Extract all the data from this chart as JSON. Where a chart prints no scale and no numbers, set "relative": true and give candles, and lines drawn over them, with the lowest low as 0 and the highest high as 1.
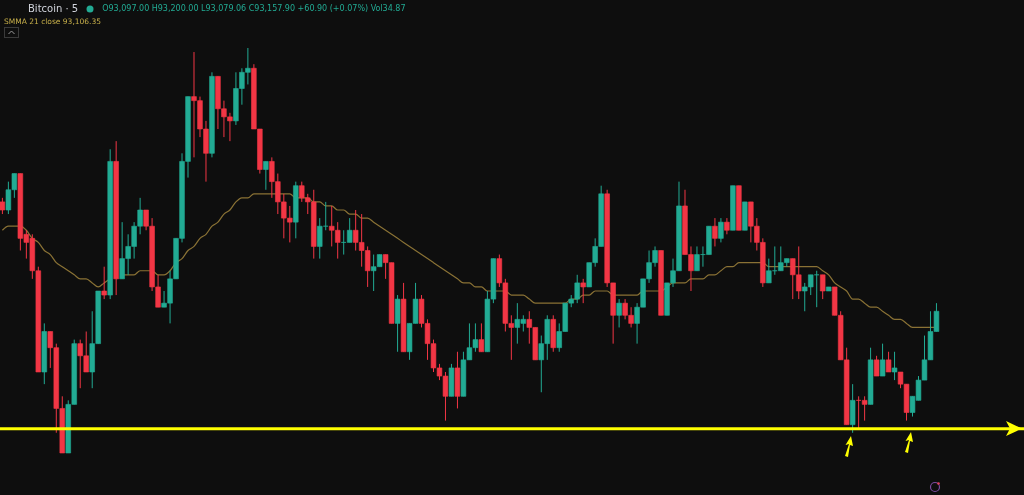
{
  "chart_data": {
    "type": "candlestick",
    "relative": true,
    "title": "Bitcoin · 5",
    "annotations": [
      "O93,097.00 H93,200.00 L93,079.06 C93,157.90 +60.90 (+0.07%) Vol34.87",
      "SMMA 21 close 93,106.35"
    ],
    "categories": [
      null,
      null,
      null,
      null,
      null,
      null,
      null,
      null,
      null,
      null,
      null,
      null,
      null,
      null,
      null,
      null,
      null,
      null,
      null,
      null,
      null,
      null,
      null,
      null,
      null,
      null,
      null,
      null,
      null,
      null,
      null,
      null,
      null,
      null,
      null,
      null,
      null,
      null,
      null,
      null,
      null,
      null,
      null,
      null,
      null,
      null,
      null,
      null,
      null,
      null,
      null,
      null,
      null,
      null,
      null,
      null,
      null,
      null,
      null,
      null,
      null,
      null,
      null,
      null,
      null,
      null,
      null,
      null,
      null,
      null,
      null,
      null,
      null,
      null,
      null,
      null,
      null,
      null,
      null,
      null,
      null,
      null,
      null,
      null,
      null,
      null,
      null,
      null,
      null,
      null,
      null,
      null,
      null,
      null,
      null,
      null,
      null,
      null,
      null,
      null,
      null,
      null,
      null,
      null,
      null,
      null,
      null,
      null,
      null,
      null,
      null,
      null,
      null,
      null,
      null,
      null,
      null,
      null,
      null,
      null,
      null,
      null,
      null,
      null,
      null,
      null,
      null,
      null,
      null,
      null,
      null,
      null,
      null,
      null,
      null,
      null,
      null,
      null,
      null,
      null,
      null,
      null,
      null,
      null,
      null,
      null,
      null,
      null,
      null,
      null,
      null,
      null,
      null,
      null,
      null,
      null,
      null
    ],
    "ohlc": [
      [
        0.62,
        0.63,
        0.59,
        0.6
      ],
      [
        0.6,
        0.67,
        0.59,
        0.65
      ],
      [
        0.65,
        0.69,
        0.63,
        0.69
      ],
      [
        0.69,
        0.69,
        0.5,
        0.53
      ],
      [
        0.54,
        0.55,
        0.48,
        0.52
      ],
      [
        0.53,
        0.54,
        0.43,
        0.45
      ],
      [
        0.45,
        0.46,
        0.2,
        0.2
      ],
      [
        0.2,
        0.32,
        0.17,
        0.3
      ],
      [
        0.3,
        0.3,
        0.21,
        0.26
      ],
      [
        0.26,
        0.27,
        0.05,
        0.11
      ],
      [
        0.11,
        0.14,
        0,
        0
      ],
      [
        0,
        0.13,
        0,
        0.12
      ],
      [
        0.12,
        0.28,
        0.12,
        0.27
      ],
      [
        0.27,
        0.28,
        0.16,
        0.24
      ],
      [
        0.24,
        0.3,
        0.2,
        0.2
      ],
      [
        0.2,
        0.35,
        0.16,
        0.27
      ],
      [
        0.27,
        0.4,
        0.27,
        0.4
      ],
      [
        0.4,
        0.46,
        0.38,
        0.39
      ],
      [
        0.39,
        0.75,
        0.38,
        0.72
      ],
      [
        0.72,
        0.77,
        0.39,
        0.43
      ],
      [
        0.43,
        0.57,
        0.43,
        0.48
      ],
      [
        0.48,
        0.54,
        0.44,
        0.51
      ],
      [
        0.51,
        0.57,
        0.48,
        0.56
      ],
      [
        0.56,
        0.63,
        0.54,
        0.6
      ],
      [
        0.6,
        0.6,
        0.55,
        0.56
      ],
      [
        0.56,
        0.58,
        0.4,
        0.41
      ],
      [
        0.41,
        0.44,
        0.36,
        0.36
      ],
      [
        0.36,
        0.4,
        0.36,
        0.37
      ],
      [
        0.37,
        0.45,
        0.32,
        0.43
      ],
      [
        0.43,
        0.53,
        0.43,
        0.53
      ],
      [
        0.53,
        0.74,
        0.52,
        0.72
      ],
      [
        0.72,
        0.88,
        0.68,
        0.88
      ],
      [
        0.88,
        0.99,
        0.73,
        0.87
      ],
      [
        0.87,
        0.88,
        0.78,
        0.8
      ],
      [
        0.8,
        0.82,
        0.67,
        0.74
      ],
      [
        0.74,
        0.94,
        0.73,
        0.93
      ],
      [
        0.93,
        0.93,
        0.8,
        0.85
      ],
      [
        0.85,
        0.87,
        0.78,
        0.83
      ],
      [
        0.83,
        0.84,
        0.77,
        0.82
      ],
      [
        0.82,
        0.94,
        0.81,
        0.9
      ],
      [
        0.9,
        0.95,
        0.86,
        0.94
      ],
      [
        0.94,
        1,
        0.91,
        0.95
      ],
      [
        0.95,
        0.96,
        0.8,
        0.8
      ],
      [
        0.8,
        0.8,
        0.69,
        0.7
      ],
      [
        0.7,
        0.72,
        0.65,
        0.72
      ],
      [
        0.72,
        0.73,
        0.63,
        0.67
      ],
      [
        0.67,
        0.69,
        0.59,
        0.62
      ],
      [
        0.62,
        0.64,
        0.53,
        0.58
      ],
      [
        0.58,
        0.61,
        0.52,
        0.57
      ],
      [
        0.57,
        0.67,
        0.53,
        0.66
      ],
      [
        0.66,
        0.67,
        0.62,
        0.63
      ],
      [
        0.63,
        0.64,
        0.59,
        0.62
      ],
      [
        0.62,
        0.65,
        0.48,
        0.51
      ],
      [
        0.51,
        0.58,
        0.48,
        0.56
      ],
      [
        0.56,
        0.62,
        0.55,
        0.56
      ],
      [
        0.56,
        0.61,
        0.51,
        0.55
      ],
      [
        0.55,
        0.57,
        0.48,
        0.52
      ],
      [
        0.52,
        0.55,
        0.49,
        0.52
      ],
      [
        0.52,
        0.58,
        0.52,
        0.55
      ],
      [
        0.55,
        0.6,
        0.5,
        0.52
      ],
      [
        0.52,
        0.59,
        0.46,
        0.5
      ],
      [
        0.5,
        0.51,
        0.41,
        0.45
      ],
      [
        0.45,
        0.49,
        0.4,
        0.46
      ],
      [
        0.46,
        0.49,
        0.46,
        0.49
      ],
      [
        0.49,
        0.49,
        0.43,
        0.47
      ],
      [
        0.47,
        0.47,
        0.32,
        0.32
      ],
      [
        0.32,
        0.39,
        0.25,
        0.38
      ],
      [
        0.38,
        0.42,
        0.25,
        0.25
      ],
      [
        0.25,
        0.32,
        0.23,
        0.32
      ],
      [
        0.32,
        0.42,
        0.32,
        0.38
      ],
      [
        0.38,
        0.39,
        0.31,
        0.32
      ],
      [
        0.32,
        0.33,
        0.23,
        0.27
      ],
      [
        0.27,
        0.28,
        0.2,
        0.21
      ],
      [
        0.21,
        0.22,
        0.18,
        0.19
      ],
      [
        0.19,
        0.2,
        0.08,
        0.14
      ],
      [
        0.14,
        0.22,
        0.14,
        0.21
      ],
      [
        0.21,
        0.25,
        0.11,
        0.14
      ],
      [
        0.14,
        0.25,
        0.14,
        0.23
      ],
      [
        0.23,
        0.32,
        0.23,
        0.26
      ],
      [
        0.26,
        0.32,
        0.25,
        0.28
      ],
      [
        0.28,
        0.32,
        0.25,
        0.25
      ],
      [
        0.25,
        0.4,
        0.25,
        0.38
      ],
      [
        0.38,
        0.48,
        0.37,
        0.48
      ],
      [
        0.48,
        0.49,
        0.41,
        0.42
      ],
      [
        0.42,
        0.43,
        0.3,
        0.32
      ],
      [
        0.32,
        0.34,
        0.23,
        0.31
      ],
      [
        0.31,
        0.37,
        0.27,
        0.33
      ],
      [
        0.32,
        0.34,
        0.3,
        0.33
      ],
      [
        0.33,
        0.35,
        0.27,
        0.31
      ],
      [
        0.31,
        0.31,
        0.23,
        0.23
      ],
      [
        0.23,
        0.29,
        0.15,
        0.27
      ],
      [
        0.27,
        0.34,
        0.23,
        0.33
      ],
      [
        0.33,
        0.34,
        0.25,
        0.26
      ],
      [
        0.26,
        0.32,
        0.25,
        0.3
      ],
      [
        0.3,
        0.37,
        0.3,
        0.37
      ],
      [
        0.37,
        0.39,
        0.36,
        0.38
      ],
      [
        0.38,
        0.44,
        0.37,
        0.42
      ],
      [
        0.42,
        0.43,
        0.37,
        0.41
      ],
      [
        0.41,
        0.47,
        0.41,
        0.47
      ],
      [
        0.47,
        0.53,
        0.46,
        0.51
      ],
      [
        0.51,
        0.66,
        0.51,
        0.64
      ],
      [
        0.64,
        0.65,
        0.41,
        0.42
      ],
      [
        0.42,
        0.42,
        0.27,
        0.34
      ],
      [
        0.34,
        0.38,
        0.31,
        0.37
      ],
      [
        0.37,
        0.38,
        0.33,
        0.34
      ],
      [
        0.34,
        0.36,
        0.31,
        0.32
      ],
      [
        0.32,
        0.37,
        0.27,
        0.36
      ],
      [
        0.36,
        0.43,
        0.36,
        0.43
      ],
      [
        0.43,
        0.5,
        0.42,
        0.47
      ],
      [
        0.47,
        0.51,
        0.46,
        0.5
      ],
      [
        0.5,
        0.5,
        0.34,
        0.34
      ],
      [
        0.34,
        0.42,
        0.34,
        0.42
      ],
      [
        0.42,
        0.48,
        0.41,
        0.45
      ],
      [
        0.45,
        0.67,
        0.45,
        0.61
      ],
      [
        0.61,
        0.65,
        0.49,
        0.49
      ],
      [
        0.49,
        0.51,
        0.4,
        0.45
      ],
      [
        0.45,
        0.51,
        0.45,
        0.49
      ],
      [
        0.49,
        0.51,
        0.46,
        0.49
      ],
      [
        0.49,
        0.56,
        0.49,
        0.56
      ],
      [
        0.56,
        0.58,
        0.51,
        0.53
      ],
      [
        0.53,
        0.58,
        0.52,
        0.57
      ],
      [
        0.57,
        0.58,
        0.54,
        0.55
      ],
      [
        0.55,
        0.66,
        0.55,
        0.66
      ],
      [
        0.66,
        0.66,
        0.55,
        0.55
      ],
      [
        0.55,
        0.62,
        0.55,
        0.62
      ],
      [
        0.62,
        0.62,
        0.52,
        0.56
      ],
      [
        0.56,
        0.58,
        0.5,
        0.52
      ],
      [
        0.52,
        0.53,
        0.41,
        0.42
      ],
      [
        0.42,
        0.48,
        0.42,
        0.45
      ],
      [
        0.45,
        0.51,
        0.44,
        0.45
      ],
      [
        0.45,
        0.51,
        0.45,
        0.47
      ],
      [
        0.47,
        0.48,
        0.46,
        0.48
      ],
      [
        0.48,
        0.48,
        0.38,
        0.44
      ],
      [
        0.44,
        0.51,
        0.38,
        0.4
      ],
      [
        0.4,
        0.42,
        0.35,
        0.41
      ],
      [
        0.41,
        0.44,
        0.39,
        0.44
      ],
      [
        0.44,
        0.45,
        0.36,
        0.44
      ],
      [
        0.44,
        0.44,
        0.38,
        0.4
      ],
      [
        0.4,
        0.41,
        0.4,
        0.41
      ],
      [
        0.41,
        0.41,
        0.34,
        0.34
      ],
      [
        0.34,
        0.35,
        0.23,
        0.23
      ],
      [
        0.23,
        0.26,
        0.07,
        0.07
      ],
      [
        0.07,
        0.17,
        0.05,
        0.13
      ],
      [
        0.13,
        0.14,
        0.06,
        0.13
      ],
      [
        0.13,
        0.14,
        0.08,
        0.12
      ],
      [
        0.12,
        0.26,
        0.12,
        0.23
      ],
      [
        0.23,
        0.24,
        0.19,
        0.19
      ],
      [
        0.19,
        0.27,
        0.19,
        0.23
      ],
      [
        0.23,
        0.25,
        0.2,
        0.2
      ],
      [
        0.2,
        0.25,
        0.18,
        0.21
      ],
      [
        0.2,
        0.2,
        0.16,
        0.17
      ],
      [
        0.17,
        0.17,
        0.08,
        0.1
      ],
      [
        0.1,
        0.14,
        0.09,
        0.14
      ],
      [
        0.13,
        0.19,
        0.13,
        0.18
      ],
      [
        0.18,
        0.29,
        0.18,
        0.23
      ],
      [
        0.23,
        0.35,
        0.23,
        0.3
      ],
      [
        0.3,
        0.37,
        0.3,
        0.35
      ]
    ],
    "colors": [
      "#f23645",
      "#22ab94",
      "#22ab94",
      "#f23645",
      "#f23645",
      "#f23645",
      "#f23645",
      "#22ab94",
      "#f23645",
      "#f23645",
      "#f23645",
      "#22ab94",
      "#22ab94",
      "#f23645",
      "#f23645",
      "#22ab94",
      "#22ab94",
      "#f23645",
      "#22ab94",
      "#f23645",
      "#22ab94",
      "#22ab94",
      "#22ab94",
      "#22ab94",
      "#f23645",
      "#f23645",
      "#f23645",
      "#22ab94",
      "#22ab94",
      "#22ab94",
      "#22ab94",
      "#22ab94",
      "#f23645",
      "#f23645",
      "#f23645",
      "#22ab94",
      "#f23645",
      "#f23645",
      "#f23645",
      "#22ab94",
      "#22ab94",
      "#22ab94",
      "#f23645",
      "#f23645",
      "#22ab94",
      "#f23645",
      "#f23645",
      "#f23645",
      "#f23645",
      "#22ab94",
      "#f23645",
      "#f23645",
      "#f23645",
      "#22ab94",
      "#22ab94",
      "#f23645",
      "#f23645",
      "#22ab94",
      "#22ab94",
      "#f23645",
      "#f23645",
      "#f23645",
      "#22ab94",
      "#22ab94",
      "#f23645",
      "#f23645",
      "#22ab94",
      "#f23645",
      "#22ab94",
      "#22ab94",
      "#f23645",
      "#f23645",
      "#f23645",
      "#f23645",
      "#f23645",
      "#22ab94",
      "#f23645",
      "#22ab94",
      "#22ab94",
      "#22ab94",
      "#f23645",
      "#22ab94",
      "#22ab94",
      "#f23645",
      "#f23645",
      "#f23645",
      "#22ab94",
      "#22ab94",
      "#f23645",
      "#f23645",
      "#22ab94",
      "#22ab94",
      "#f23645",
      "#22ab94",
      "#22ab94",
      "#22ab94",
      "#22ab94",
      "#f23645",
      "#22ab94",
      "#22ab94",
      "#22ab94",
      "#f23645",
      "#f23645",
      "#22ab94",
      "#f23645",
      "#f23645",
      "#22ab94",
      "#22ab94",
      "#22ab94",
      "#22ab94",
      "#f23645",
      "#22ab94",
      "#22ab94",
      "#22ab94",
      "#f23645",
      "#f23645",
      "#22ab94",
      "#22ab94",
      "#22ab94",
      "#f23645",
      "#22ab94",
      "#f23645",
      "#22ab94",
      "#f23645",
      "#22ab94",
      "#f23645",
      "#f23645",
      "#f23645",
      "#22ab94",
      "#22ab94",
      "#22ab94",
      "#22ab94",
      "#f23645",
      "#f23645",
      "#22ab94",
      "#22ab94",
      "#22ab94",
      "#f23645",
      "#22ab94",
      "#f23645",
      "#f23645",
      "#f23645",
      "#22ab94",
      "#f23645",
      "#f23645",
      "#22ab94",
      "#f23645",
      "#22ab94",
      "#f23645",
      "#22ab94",
      "#f23645",
      "#f23645",
      "#22ab94",
      "#22ab94",
      "#22ab94",
      "#22ab94",
      "#22ab94"
    ],
    "series": [
      {
        "type": "line",
        "color": "#8a7235",
        "values": [
          0.55,
          0.56,
          0.56,
          0.56,
          0.55,
          0.53,
          0.52,
          0.5,
          0.49,
          0.47,
          0.46,
          0.45,
          0.44,
          0.43,
          0.43,
          0.42,
          0.41,
          0.42,
          0.43,
          null,
          0.44,
          0.44,
          0.44,
          0.45,
          0.45,
          0.45,
          0.44,
          0.44,
          0.45,
          0.47,
          0.48,
          0.5,
          0.51,
          0.53,
          0.54,
          0.56,
          0.57,
          0.59,
          0.6,
          0.62,
          0.63,
          0.63,
          0.64,
          0.64,
          0.64,
          0.64,
          0.64,
          0.64,
          0.64,
          0.63,
          0.63,
          0.63,
          0.62,
          0.62,
          0.61,
          0.61,
          0.6,
          0.6,
          0.59,
          0.59,
          0.58,
          0.58,
          0.57,
          0.56,
          0.55,
          0.54,
          0.53,
          0.52,
          0.51,
          0.5,
          0.49,
          0.48,
          0.47,
          0.46,
          0.45,
          0.44,
          0.43,
          0.42,
          0.42,
          0.41,
          0.41,
          0.4,
          0.4,
          0.4,
          0.4,
          0.39,
          0.39,
          0.39,
          0.38,
          0.37,
          0.37,
          0.37,
          0.37,
          0.37,
          0.37,
          0.38,
          0.38,
          0.39,
          0.39,
          0.4,
          0.4,
          0.4,
          0.39,
          0.39,
          0.39,
          0.39,
          0.39,
          0.4,
          0.4,
          0.4,
          0.4,
          0.41,
          0.42,
          0.42,
          0.42,
          0.43,
          0.43,
          0.43,
          0.44,
          0.44,
          0.45,
          0.46,
          0.46,
          0.47,
          0.47,
          0.47,
          0.47,
          0.47,
          0.46,
          0.46,
          0.46,
          0.46,
          0.46,
          0.46,
          0.46,
          0.46,
          0.46,
          0.45,
          0.44,
          0.42,
          0.41,
          0.4,
          0.38,
          0.38,
          0.37,
          0.36,
          0.36,
          0.35,
          0.34,
          0.33,
          0.33,
          0.32,
          0.31,
          0.31,
          0.31,
          0.31,
          0.31
        ]
      }
    ],
    "ref_lines": [
      {
        "axis": "y",
        "value": 0.06,
        "color": "#ffff00"
      }
    ]
  }
}
